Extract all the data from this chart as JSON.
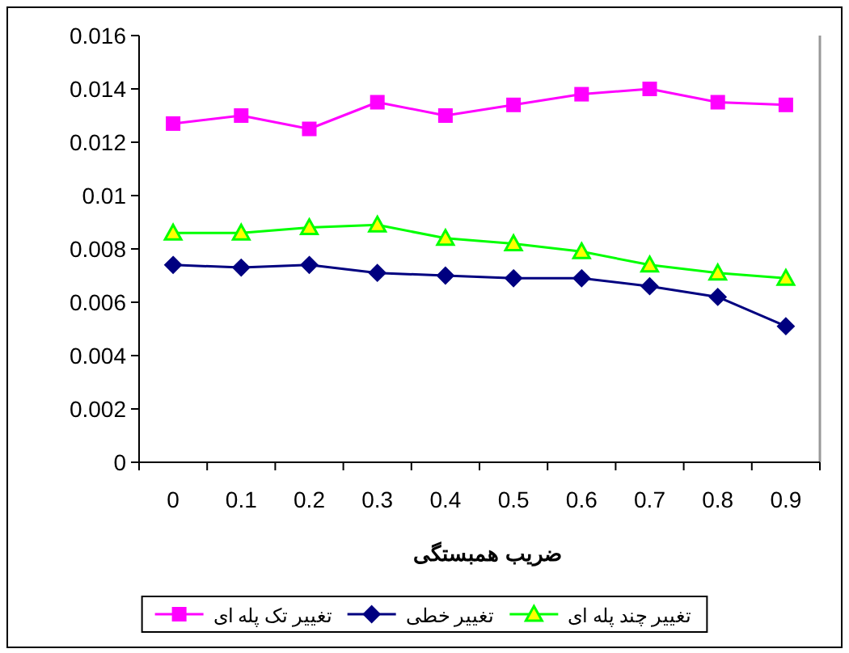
{
  "chart_data": {
    "type": "line",
    "xlabel": "ضریب همبستگی",
    "categories": [
      "0",
      "0.1",
      "0.2",
      "0.3",
      "0.4",
      "0.5",
      "0.6",
      "0.7",
      "0.8",
      "0.9"
    ],
    "ylim": [
      0,
      0.016
    ],
    "yticks": [
      0,
      0.002,
      0.004,
      0.006,
      0.008,
      0.01,
      0.012,
      0.014,
      0.016
    ],
    "grid": false,
    "legend": "bottom",
    "line_style": "solid",
    "series": [
      {
        "name": "تغییر تک پله ای",
        "color": "#ff00ff",
        "marker": "square",
        "values": [
          0.0127,
          0.013,
          0.0125,
          0.0135,
          0.013,
          0.0134,
          0.0138,
          0.014,
          0.0135,
          0.0134
        ]
      },
      {
        "name": "تغییر خطی",
        "color": "#000080",
        "marker": "diamond",
        "values": [
          0.0074,
          0.0073,
          0.0074,
          0.0071,
          0.007,
          0.0069,
          0.0069,
          0.0066,
          0.0062,
          0.0051
        ]
      },
      {
        "name": "تغییر چند پله ای",
        "color": "#00ff00",
        "marker": "triangle",
        "values": [
          0.0086,
          0.0086,
          0.0088,
          0.0089,
          0.0084,
          0.0082,
          0.0079,
          0.0074,
          0.0071,
          0.0069
        ]
      }
    ]
  }
}
